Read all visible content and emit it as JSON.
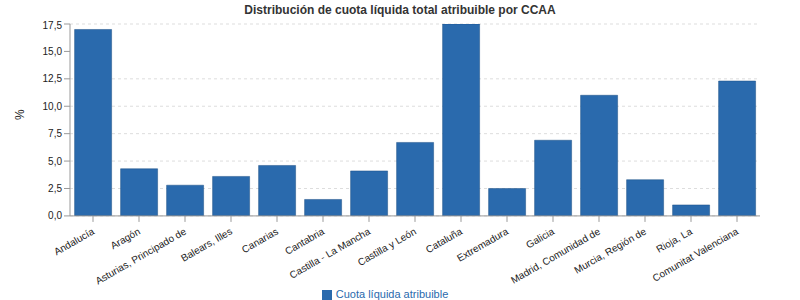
{
  "chart_data": {
    "type": "bar",
    "title": "Distribución de cuota líquida total atribuible por CCAA",
    "y_label": "%",
    "categories": [
      "Andalucía",
      "Aragón",
      "Asturias, Principado de",
      "Balears, Illes",
      "Canarias",
      "Cantabria",
      "Castilla - La Mancha",
      "Castilla y León",
      "Cataluña",
      "Extremadura",
      "Galicia",
      "Madrid, Comunidad de",
      "Murcia, Región de",
      "Rioja, La",
      "Comunitat Valenciana"
    ],
    "series": [
      {
        "name": "Cuota líquida atribuible",
        "color": "#2a6aad",
        "values": [
          17.0,
          4.3,
          2.8,
          3.6,
          4.6,
          1.5,
          4.1,
          6.7,
          17.5,
          2.5,
          6.9,
          11.0,
          3.3,
          1.0,
          12.3
        ]
      }
    ],
    "ylim": [
      0,
      17.5
    ],
    "yticks": [
      {
        "value": 0,
        "label": "0,0"
      },
      {
        "value": 2.5,
        "label": "2,5"
      },
      {
        "value": 5,
        "label": "5,0"
      },
      {
        "value": 7.5,
        "label": "7,5"
      },
      {
        "value": 10,
        "label": "10,0"
      },
      {
        "value": 12.5,
        "label": "12,5"
      },
      {
        "value": 15,
        "label": "15,0"
      },
      {
        "value": 17.5,
        "label": "17,5"
      }
    ],
    "grid": true,
    "legend": "bottom"
  }
}
